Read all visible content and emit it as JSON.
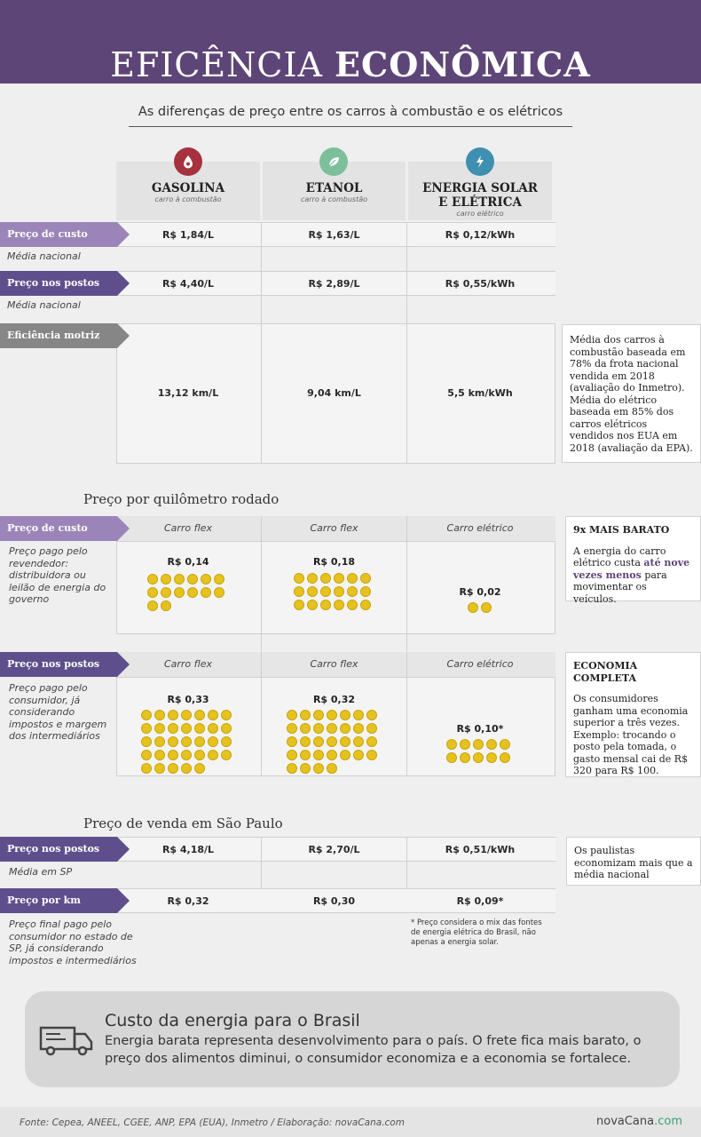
{
  "header": {
    "title_light": "EFICÊNCIA",
    "title_bold": "ECONÔMICA",
    "subtitle": "As diferenças de preço entre os carros à combustão e os elétricos"
  },
  "fuels": [
    {
      "name": "GASOLINA",
      "sub": "carro à combustão",
      "icon": "drop-icon",
      "color": "#a5323e"
    },
    {
      "name": "ETANOL",
      "sub": "carro à combustão",
      "icon": "leaf-icon",
      "color": "#7cbf9a"
    },
    {
      "name": "ENERGIA SOLAR E ELÉTRICA",
      "sub": "carro elétrico",
      "icon": "lightning-icon",
      "color": "#3e8fb0"
    }
  ],
  "rows": {
    "custo": {
      "label": "Preço de custo",
      "note": "Média nacional",
      "values": [
        "R$ 1,84/L",
        "R$ 1,63/L",
        "R$ 0,12/kWh"
      ]
    },
    "postos": {
      "label": "Preço nos postos",
      "note": "Média nacional",
      "values": [
        "R$ 4,40/L",
        "R$ 2,89/L",
        "R$ 0,55/kWh"
      ]
    },
    "eficiencia": {
      "label": "Eficiência motriz",
      "values": [
        "13,12 km/L",
        "9,04 km/L",
        "5,5 km/kWh"
      ],
      "side": "Média dos carros à combustão baseada em 78% da frota nacional vendida em 2018 (avaliação do Inmetro). Média do elétrico baseada em 85% dos carros elétricos vendidos nos EUA em 2018 (avaliação da EPA)."
    }
  },
  "km": {
    "title": "Preço por quilômetro rodado",
    "cols": [
      "Carro flex",
      "Carro flex",
      "Carro elétrico"
    ],
    "custo": {
      "label": "Preço de custo",
      "note": "Preço pago pelo revendedor: distribuidora ou leilão de energia do governo",
      "prices": [
        "R$ 0,14",
        "R$ 0,18",
        "R$ 0,02"
      ],
      "coins": [
        14,
        18,
        2
      ],
      "side_title": "9x MAIS BARATO",
      "side_a": "A energia do carro elétrico custa ",
      "side_hl": "até nove vezes menos",
      "side_b": " para movimentar os veículos."
    },
    "postos": {
      "label": "Preço nos postos",
      "note": "Preço pago pelo consumidor, já considerando impostos e margem dos intermediários",
      "prices": [
        "R$ 0,33",
        "R$ 0,32",
        "R$ 0,10*"
      ],
      "coins": [
        33,
        32,
        10
      ],
      "side_title": "ECONOMIA COMPLETA",
      "side_text": "Os consumidores ganham uma economia superior a três vezes. Exemplo: trocando o posto pela tomada, o gasto mensal cai de R$ 320 para R$ 100."
    }
  },
  "sp": {
    "title": "Preço de venda em São Paulo",
    "postos": {
      "label": "Preço nos postos",
      "note": "Média em SP",
      "values": [
        "R$ 4,18/L",
        "R$ 2,70/L",
        "R$ 0,51/kWh"
      ],
      "side": "Os paulistas economizam mais que a média nacional"
    },
    "km": {
      "label": "Preço por km",
      "note": "Preço final pago pelo consumidor no estado de SP, já considerando impostos e intermediários",
      "values": [
        "R$ 0,32",
        "R$ 0,30",
        "R$ 0,09*"
      ]
    },
    "footnote": "* Preço considera o mix das fontes de energia elétrica do Brasil, não apenas a energia solar."
  },
  "energy": {
    "title": "Custo da energia para o Brasil",
    "text": "Energia barata representa desenvolvimento para o país. O frete fica mais barato, o preço dos alimentos diminui, o consumidor economiza e a economia se fortalece."
  },
  "footer": {
    "source": "Fonte: Cepea, ANEEL, CGEE, ANP, EPA (EUA), Inmetro / Elaboração: novaCana.com",
    "brand": "novaCana",
    "brand_suffix": ".com"
  }
}
